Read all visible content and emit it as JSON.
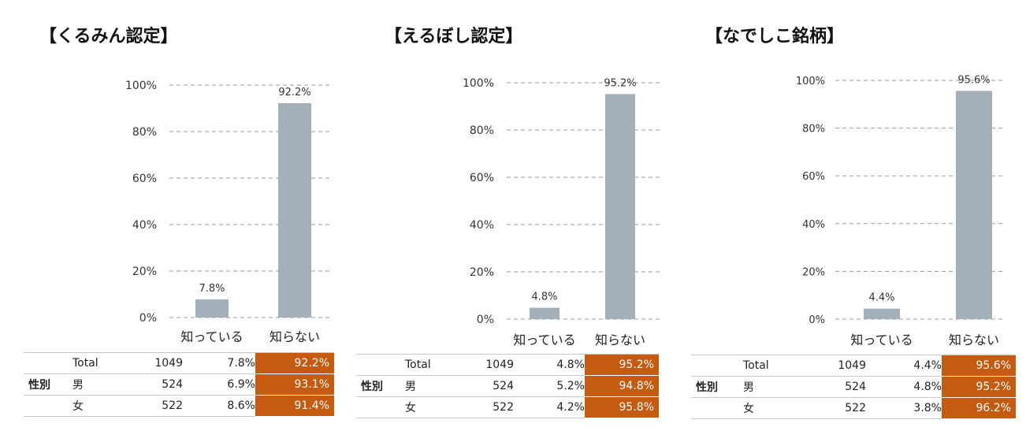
{
  "colors": {
    "bar": "#a2b0ba",
    "highlight": "#c55a11",
    "grid": "#9a9a9a"
  },
  "panels": [
    {
      "title": "【くるみん認定】",
      "chart_data": {
        "type": "bar",
        "title": "【くるみん認定】",
        "categories": [
          "知っている",
          "知らない"
        ],
        "values": [
          7.8,
          92.2
        ],
        "value_labels": [
          "7.8%",
          "92.2%"
        ],
        "yticks": [
          "0%",
          "20%",
          "40%",
          "60%",
          "80%",
          "100%"
        ],
        "ylim": [
          0,
          100
        ],
        "grid": true
      },
      "table": {
        "group_label": "性別",
        "rows": [
          {
            "label": "Total",
            "n": "1049",
            "know": "7.8%",
            "dont": "92.2%"
          },
          {
            "label": "男",
            "n": "524",
            "know": "6.9%",
            "dont": "93.1%"
          },
          {
            "label": "女",
            "n": "522",
            "know": "8.6%",
            "dont": "91.4%"
          }
        ]
      }
    },
    {
      "title": "【えるぼし認定】",
      "chart_data": {
        "type": "bar",
        "title": "【えるぼし認定】",
        "categories": [
          "知っている",
          "知らない"
        ],
        "values": [
          4.8,
          95.2
        ],
        "value_labels": [
          "4.8%",
          "95.2%"
        ],
        "yticks": [
          "0%",
          "20%",
          "40%",
          "60%",
          "80%",
          "100%"
        ],
        "ylim": [
          0,
          100
        ],
        "grid": true
      },
      "table": {
        "group_label": "性別",
        "rows": [
          {
            "label": "Total",
            "n": "1049",
            "know": "4.8%",
            "dont": "95.2%"
          },
          {
            "label": "男",
            "n": "524",
            "know": "5.2%",
            "dont": "94.8%"
          },
          {
            "label": "女",
            "n": "522",
            "know": "4.2%",
            "dont": "95.8%"
          }
        ]
      }
    },
    {
      "title": "【なでしこ銘柄】",
      "chart_data": {
        "type": "bar",
        "title": "【なでしこ銘柄】",
        "categories": [
          "知っている",
          "知らない"
        ],
        "values": [
          4.4,
          95.6
        ],
        "value_labels": [
          "4.4%",
          "95.6%"
        ],
        "yticks": [
          "0%",
          "20%",
          "40%",
          "60%",
          "80%",
          "100%"
        ],
        "ylim": [
          0,
          100
        ],
        "grid": true
      },
      "table": {
        "group_label": "性別",
        "rows": [
          {
            "label": "Total",
            "n": "1049",
            "know": "4.4%",
            "dont": "95.6%"
          },
          {
            "label": "男",
            "n": "524",
            "know": "4.8%",
            "dont": "95.2%"
          },
          {
            "label": "女",
            "n": "522",
            "know": "3.8%",
            "dont": "96.2%"
          }
        ]
      }
    }
  ]
}
